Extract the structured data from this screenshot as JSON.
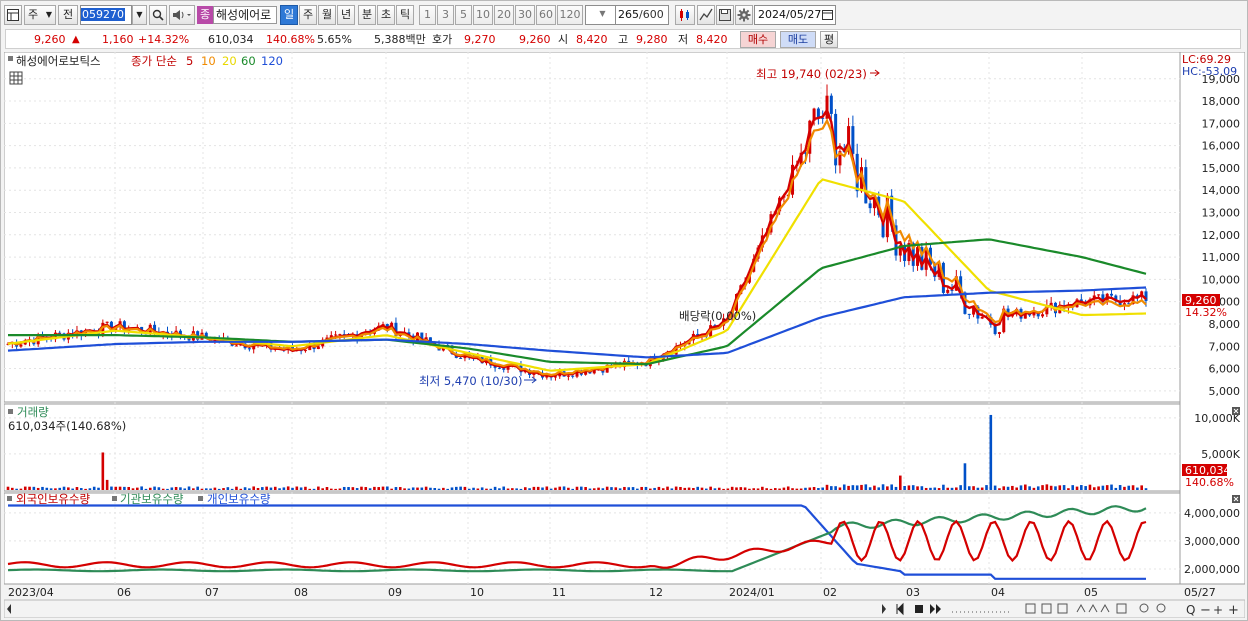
{
  "toolbar": {
    "menu_label": "주",
    "type_label": "전",
    "code": "059270",
    "stock_name": "해성에어로",
    "active_mark": "종",
    "periods": [
      "일",
      "주",
      "월",
      "년",
      "분",
      "초",
      "틱"
    ],
    "intervals": [
      "1",
      "3",
      "5",
      "10",
      "20",
      "30",
      "60",
      "120"
    ],
    "count": "265",
    "count_total": "/600",
    "date": "2024/05/27"
  },
  "quote": {
    "price": "9,260",
    "change": "1,160",
    "change_pct": "+14.32%",
    "volume": "610,034",
    "volume_ratio": "140.68%",
    "turnover": "5.65%",
    "amount": "5,388백만",
    "bid_label": "호가",
    "bid1": "9,270",
    "bid2": "9,260",
    "open_label": "시",
    "open": "8,420",
    "high_label": "고",
    "high": "9,280",
    "low_label": "저",
    "low": "8,420",
    "buy": "매수",
    "sell": "매도",
    "eval": "평"
  },
  "price_panel": {
    "title": "해성에어로보틱스",
    "series_label": "종가 단순",
    "ma": [
      "5",
      "10",
      "20",
      "60",
      "120"
    ],
    "lc": "LC:69.29",
    "hc": "HC:-53.09",
    "high_note": "최고 19,740 (02/23)",
    "low_note": "최저 5,470 (10/30)",
    "dividend_note": "배당락(0.00%)",
    "y_ticks": [
      "19,000",
      "18,000",
      "17,000",
      "16,000",
      "15,000",
      "14,000",
      "13,000",
      "12,000",
      "11,000",
      "10,000",
      "9,000",
      "8,000",
      "7,000",
      "6,000",
      "5,000"
    ],
    "last_price": "9,260",
    "last_pct": "14.32%"
  },
  "volume_panel": {
    "title": "거래량",
    "value": "610,034주(140.68%)",
    "y_ticks": [
      "10,000K",
      "5,000K"
    ],
    "last": "610,034",
    "last_pct": "140.68%"
  },
  "holding_panel": {
    "titles": [
      "외국인보유수량",
      "기관보유수량",
      "개인보유수량"
    ],
    "y_ticks": [
      "4,000,000",
      "3,000,000",
      "2,000,000"
    ]
  },
  "x_axis": {
    "labels": [
      "2023/04",
      "06",
      "07",
      "08",
      "09",
      "10",
      "11",
      "12",
      "2024/01",
      "02",
      "03",
      "04",
      "05",
      "05/27"
    ]
  },
  "colors": {
    "up": "#d40000",
    "down": "#0050c8",
    "ma5": "#d40000",
    "ma10": "#f08a00",
    "ma20": "#f0e000",
    "ma60": "#1a8a2a",
    "ma120": "#1f4fd8",
    "inst": "#2e8b57",
    "indiv": "#1f4fd8"
  },
  "chart_data": {
    "type": "line",
    "x": [
      "2023/04",
      "06",
      "07",
      "08",
      "09",
      "10",
      "11",
      "12",
      "2024/01",
      "02",
      "03",
      "04",
      "05",
      "05/27"
    ],
    "series": [
      {
        "name": "5",
        "values": [
          7100,
          7900,
          7400,
          6800,
          7900,
          6500,
          5700,
          6300,
          8100,
          17500,
          11500,
          8200,
          9000,
          9260
        ]
      },
      {
        "name": "10",
        "values": [
          7100,
          7800,
          7400,
          6900,
          7700,
          6600,
          5800,
          6300,
          7900,
          16500,
          12500,
          8500,
          8800,
          8700
        ]
      },
      {
        "name": "20",
        "values": [
          7100,
          7700,
          7400,
          7000,
          7500,
          6700,
          5900,
          6200,
          7700,
          14500,
          13500,
          9500,
          8400,
          8500
        ]
      },
      {
        "name": "60",
        "values": [
          7500,
          7500,
          7400,
          7200,
          7300,
          6900,
          6300,
          6200,
          7000,
          10500,
          11500,
          11800,
          11000,
          9900
        ]
      },
      {
        "name": "120",
        "values": [
          6800,
          7100,
          7200,
          7200,
          7300,
          7100,
          6800,
          6500,
          6700,
          8300,
          9200,
          9400,
          9500,
          9700
        ]
      }
    ],
    "ylabel": "",
    "ylim": [
      4500,
      20200
    ]
  }
}
